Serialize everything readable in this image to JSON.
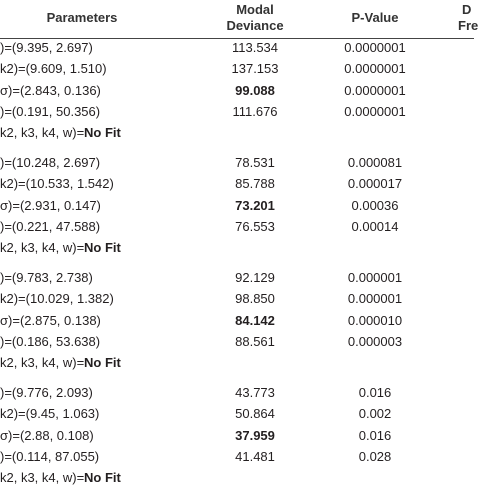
{
  "header": {
    "parameters": "Parameters",
    "deviance": [
      "Modal",
      "Deviance"
    ],
    "p_value": "P-Value",
    "last": [
      "D",
      "Fre"
    ]
  },
  "blocks": [
    {
      "rows": [
        {
          "parameters": ")=(9.395, 2.697)",
          "deviance": "113.534",
          "p_value": "0.0000001"
        },
        {
          "parameters": "k2)=(9.609, 1.510)",
          "deviance": "137.153",
          "p_value": "0.0000001"
        },
        {
          "parameters": "σ)=(2.843, 0.136)",
          "deviance": "99.088",
          "p_value": "0.0000001",
          "bold": true
        },
        {
          "parameters": ")=(0.191, 50.356)",
          "deviance": "111.676",
          "p_value": "0.0000001"
        }
      ],
      "no_fit": {
        "prefix": "k2, k3, k4, w)=",
        "label": "No Fit"
      }
    },
    {
      "rows": [
        {
          "parameters": ")=(10.248, 2.697)",
          "deviance": "78.531",
          "p_value": "0.000081"
        },
        {
          "parameters": "k2)=(10.533, 1.542)",
          "deviance": "85.788",
          "p_value": "0.000017"
        },
        {
          "parameters": "σ)=(2.931, 0.147)",
          "deviance": "73.201",
          "p_value": "0.00036",
          "bold": true
        },
        {
          "parameters": ")=(0.221, 47.588)",
          "deviance": "76.553",
          "p_value": "0.00014"
        }
      ],
      "no_fit": {
        "prefix": "k2, k3, k4, w)=",
        "label": "No Fit"
      }
    },
    {
      "rows": [
        {
          "parameters": ")=(9.783, 2.738)",
          "deviance": "92.129",
          "p_value": "0.000001"
        },
        {
          "parameters": "k2)=(10.029, 1.382)",
          "deviance": "98.850",
          "p_value": "0.000001"
        },
        {
          "parameters": "σ)=(2.875, 0.138)",
          "deviance": "84.142",
          "p_value": "0.000010",
          "bold": true
        },
        {
          "parameters": ")=(0.186, 53.638)",
          "deviance": "88.561",
          "p_value": "0.000003"
        }
      ],
      "no_fit": {
        "prefix": "k2, k3, k4, w)=",
        "label": "No Fit"
      }
    },
    {
      "rows": [
        {
          "parameters": ")=(9.776, 2.093)",
          "deviance": "43.773",
          "p_value": "0.016"
        },
        {
          "parameters": "k2)=(9.45, 1.063)",
          "deviance": "50.864",
          "p_value": "0.002"
        },
        {
          "parameters": "σ)=(2.88, 0.108)",
          "deviance": "37.959",
          "p_value": "0.016",
          "bold": true
        },
        {
          "parameters": ")=(0.114, 87.055)",
          "deviance": "41.481",
          "p_value": "0.028"
        }
      ],
      "no_fit": {
        "prefix": "k2, k3, k4, w)=",
        "label": "No Fit"
      }
    }
  ]
}
